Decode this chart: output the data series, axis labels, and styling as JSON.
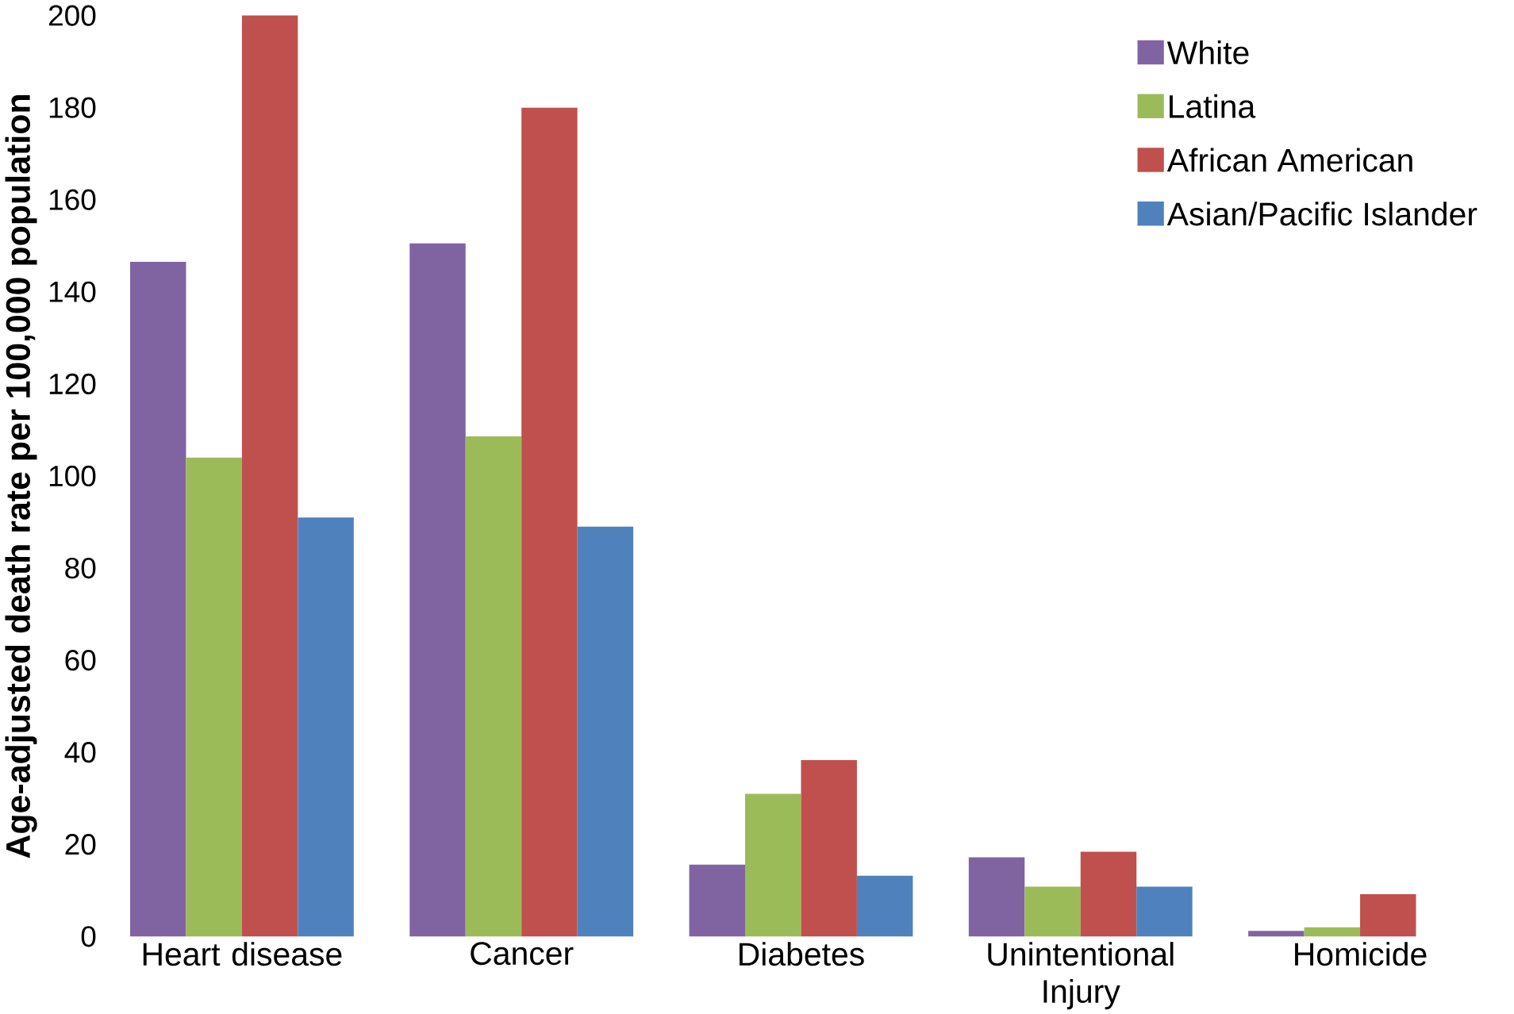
{
  "chart_data": {
    "type": "bar",
    "ylabel": "Age-adjusted death rate per 100,000 population",
    "categories": [
      "Heart disease",
      "Cancer",
      "Diabetes",
      "Unintentional Injury",
      "Homicide"
    ],
    "series": [
      {
        "name": "White",
        "color": "#8064a2",
        "values": [
          146.5,
          150.5,
          15.6,
          17.2,
          1.2
        ]
      },
      {
        "name": "Latina",
        "color": "#9bbb59",
        "values": [
          104,
          108.6,
          31,
          10.8,
          2
        ]
      },
      {
        "name": "African American",
        "color": "#c0504d",
        "values": [
          200,
          180,
          38.3,
          18.4,
          9.2
        ]
      },
      {
        "name": "Asian/Pacific Islander",
        "color": "#4f81bd",
        "values": [
          91,
          89,
          13.2,
          10.8,
          null
        ]
      }
    ],
    "ylim": [
      0,
      200
    ],
    "yticks": [
      0,
      20,
      40,
      60,
      80,
      100,
      120,
      140,
      160,
      180,
      200
    ],
    "grid": false,
    "legend": "top right"
  }
}
